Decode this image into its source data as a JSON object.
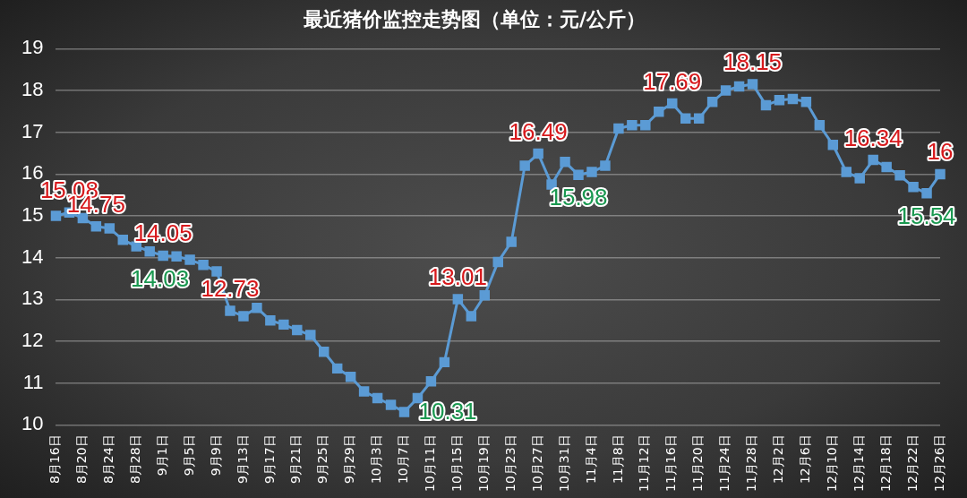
{
  "chart_data": {
    "type": "line",
    "title": "最近猪价监控走势图（单位：元/公斤）",
    "categories": [
      "8月16日",
      null,
      "8月20日",
      null,
      "8月24日",
      null,
      "8月28日",
      null,
      "9月1日",
      null,
      "9月5日",
      null,
      "9月9日",
      null,
      "9月13日",
      null,
      "9月17日",
      null,
      "9月21日",
      null,
      "9月25日",
      null,
      "9月29日",
      null,
      "10月3日",
      null,
      "10月7日",
      null,
      "10月11日",
      null,
      "10月15日",
      null,
      "10月19日",
      null,
      "10月23日",
      null,
      "10月27日",
      null,
      "10月31日",
      null,
      "11月4日",
      null,
      "11月8日",
      null,
      "11月12日",
      null,
      "11月16日",
      null,
      "11月20日",
      null,
      "11月24日",
      null,
      "11月28日",
      null,
      "12月2日",
      null,
      "12月6日",
      null,
      "12月10日",
      null,
      "12月14日",
      null,
      "12月18日",
      null,
      "12月22日",
      null,
      "12月26日"
    ],
    "series": [
      {
        "color": "#5b9bd5",
        "values": [
          15.0,
          15.08,
          14.95,
          14.75,
          14.7,
          14.43,
          14.27,
          14.15,
          14.05,
          14.03,
          13.95,
          13.83,
          13.67,
          12.73,
          12.6,
          12.8,
          12.5,
          12.4,
          12.27,
          12.15,
          11.75,
          11.35,
          11.15,
          10.8,
          10.64,
          10.48,
          10.31,
          10.64,
          11.04,
          11.5,
          13.01,
          12.6,
          13.1,
          13.9,
          14.38,
          16.2,
          16.49,
          15.75,
          16.29,
          15.98,
          16.05,
          16.2,
          17.09,
          17.17,
          17.17,
          17.49,
          17.69,
          17.33,
          17.33,
          17.73,
          18.0,
          18.1,
          18.15,
          17.65,
          17.77,
          17.8,
          17.73,
          17.17,
          16.7,
          16.05,
          15.9,
          16.34,
          16.17,
          15.97,
          15.69,
          15.54,
          16
        ],
        "value_labels": [
          null,
          "15.08",
          null,
          "14.75",
          null,
          null,
          null,
          null,
          "14.05",
          "14.03",
          null,
          null,
          null,
          "12.73",
          null,
          null,
          null,
          null,
          null,
          null,
          null,
          null,
          null,
          null,
          null,
          null,
          "10.31",
          null,
          null,
          null,
          "13.01",
          null,
          null,
          null,
          null,
          null,
          "16.49",
          null,
          null,
          "15.98",
          null,
          null,
          null,
          null,
          null,
          null,
          "17.69",
          null,
          null,
          null,
          null,
          null,
          "18.15",
          null,
          null,
          null,
          null,
          null,
          null,
          null,
          null,
          "16.34",
          null,
          null,
          null,
          "15.54",
          "16"
        ]
      }
    ],
    "ylim": [
      10,
      19
    ],
    "yticks": [
      10,
      11,
      12,
      13,
      14,
      15,
      16,
      17,
      18,
      19
    ],
    "grid": "y",
    "legend": false,
    "marker": "square",
    "line_style": "solid"
  }
}
